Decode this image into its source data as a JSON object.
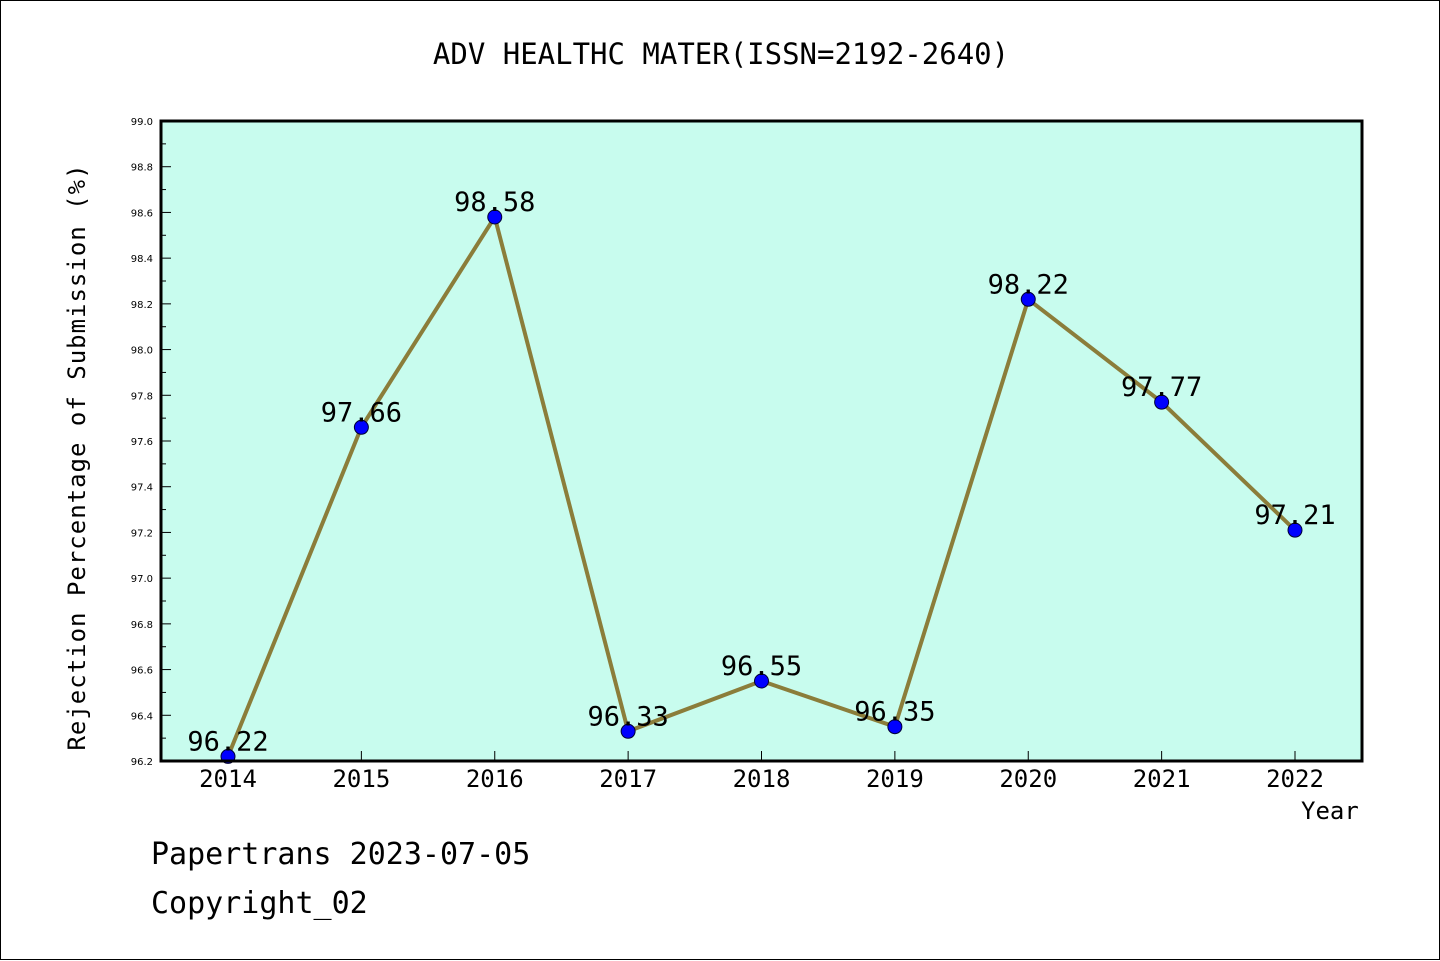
{
  "title": "ADV HEALTHC MATER(ISSN=2192-2640)",
  "footer": {
    "line1": "Papertrans 2023-07-05",
    "line2": "Copyright_02"
  },
  "colors": {
    "plot_background": "#c8fcee",
    "line": "#8b7d3a",
    "marker": "#0000ff"
  },
  "chart_data": {
    "type": "line",
    "xlabel": "Year",
    "ylabel": "Rejection Percentage of Submission (%)",
    "categories": [
      "2014",
      "2015",
      "2016",
      "2017",
      "2018",
      "2019",
      "2020",
      "2021",
      "2022"
    ],
    "values": [
      96.22,
      97.66,
      98.58,
      96.33,
      96.55,
      96.35,
      98.22,
      97.77,
      97.21
    ],
    "data_labels": [
      "96.22",
      "97.66",
      "98.58",
      "96.33",
      "96.55",
      "96.35",
      "98.22",
      "97.77",
      "97.21"
    ],
    "ylim": [
      96.2,
      99.0
    ],
    "yticks": [
      "96.2",
      "96.4",
      "96.6",
      "96.8",
      "97.0",
      "97.2",
      "97.4",
      "97.6",
      "97.8",
      "98.0",
      "98.2",
      "98.4",
      "98.6",
      "98.8",
      "99.0"
    ],
    "grid": false,
    "legend": "none"
  }
}
